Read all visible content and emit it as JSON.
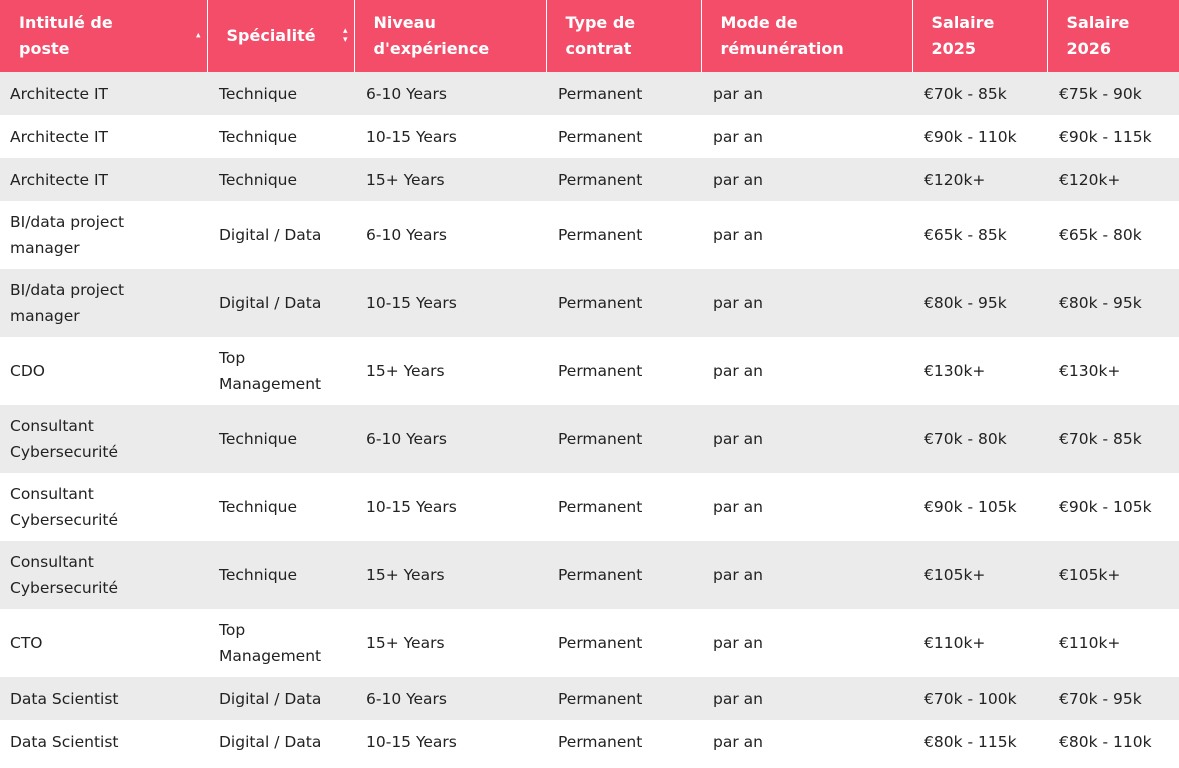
{
  "table": {
    "headers": [
      "Intitulé de poste",
      "Spécialité",
      "Niveau d'expérience",
      "Type de contrat",
      "Mode de rémunération",
      "Salaire 2025",
      "Salaire 2026"
    ],
    "rows": [
      [
        "Architecte IT",
        "Technique",
        "6-10 Years",
        "Permanent",
        "par an",
        "€70k - 85k",
        "€75k - 90k"
      ],
      [
        "Architecte IT",
        "Technique",
        "10-15 Years",
        "Permanent",
        "par an",
        "€90k - 110k",
        "€90k - 115k"
      ],
      [
        "Architecte IT",
        "Technique",
        "15+ Years",
        "Permanent",
        "par an",
        "€120k+",
        "€120k+"
      ],
      [
        "BI/data project manager",
        "Digital / Data",
        "6-10 Years",
        "Permanent",
        "par an",
        "€65k - 85k",
        "€65k - 80k"
      ],
      [
        "BI/data project manager",
        "Digital / Data",
        "10-15 Years",
        "Permanent",
        "par an",
        "€80k - 95k",
        "€80k - 95k"
      ],
      [
        "CDO",
        "Top Management",
        "15+ Years",
        "Permanent",
        "par an",
        "€130k+",
        "€130k+"
      ],
      [
        "Consultant Cybersecurité",
        "Technique",
        "6-10 Years",
        "Permanent",
        "par an",
        "€70k - 80k",
        "€70k - 85k"
      ],
      [
        "Consultant Cybersecurité",
        "Technique",
        "10-15 Years",
        "Permanent",
        "par an",
        "€90k - 105k",
        "€90k - 105k"
      ],
      [
        "Consultant Cybersecurité",
        "Technique",
        "15+ Years",
        "Permanent",
        "par an",
        "€105k+",
        "€105k+"
      ],
      [
        "CTO",
        "Top Management",
        "15+ Years",
        "Permanent",
        "par an",
        "€110k+",
        "€110k+"
      ],
      [
        "Data Scientist",
        "Digital / Data",
        "6-10 Years",
        "Permanent",
        "par an",
        "€70k - 100k",
        "€70k - 95k"
      ],
      [
        "Data Scientist",
        "Digital / Data",
        "10-15 Years",
        "Permanent",
        "par an",
        "€80k - 115k",
        "€80k - 110k"
      ]
    ]
  }
}
